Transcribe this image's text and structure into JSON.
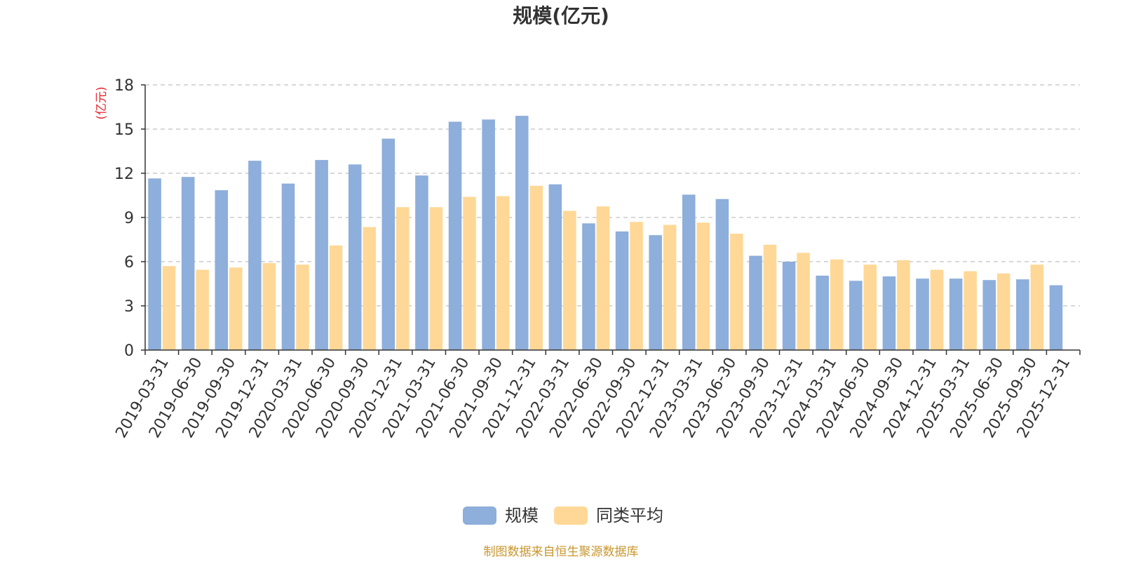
{
  "chart_data": {
    "type": "bar",
    "title": "规模(亿元)",
    "ylabel": "(亿元)",
    "xlabel": "",
    "ylim": [
      0,
      18
    ],
    "yticks": [
      0,
      3,
      6,
      9,
      12,
      15,
      18
    ],
    "grid": true,
    "legend_position": "bottom-center",
    "categories": [
      "2019-03-31",
      "2019-06-30",
      "2019-09-30",
      "2019-12-31",
      "2020-03-31",
      "2020-06-30",
      "2020-09-30",
      "2020-12-31",
      "2021-03-31",
      "2021-06-30",
      "2021-09-30",
      "2021-12-31",
      "2022-03-31",
      "2022-06-30",
      "2022-09-30",
      "2022-12-31",
      "2023-03-31",
      "2023-06-30",
      "2023-09-30",
      "2023-12-31",
      "2024-03-31",
      "2024-06-30",
      "2024-09-30",
      "2024-12-31",
      "2025-03-31",
      "2025-06-30",
      "2025-09-30",
      "2025-12-31"
    ],
    "series": [
      {
        "name": "规模",
        "color": "#8eaedb",
        "values": [
          11.65,
          11.75,
          10.85,
          12.85,
          11.3,
          12.9,
          12.6,
          14.35,
          11.85,
          15.5,
          15.65,
          15.9,
          11.25,
          8.6,
          8.05,
          7.8,
          10.55,
          10.25,
          6.4,
          6.0,
          5.05,
          4.7,
          5.0,
          4.85,
          4.85,
          4.75,
          4.8,
          4.4
        ]
      },
      {
        "name": "同类平均",
        "color": "#ffd897",
        "values": [
          5.7,
          5.45,
          5.6,
          5.9,
          5.8,
          7.1,
          8.35,
          9.7,
          9.7,
          10.4,
          10.45,
          11.15,
          9.45,
          9.75,
          8.7,
          8.5,
          8.65,
          7.9,
          7.15,
          6.6,
          6.15,
          5.8,
          6.1,
          5.45,
          5.35,
          5.2,
          5.8,
          null
        ]
      }
    ]
  },
  "footer": {
    "source": "制图数据来自恒生聚源数据库"
  },
  "colors": {
    "title": "#333333",
    "axis": "#333333",
    "grid": "#cccccc",
    "ylabel": "#e8232b",
    "source": "#c8962e"
  }
}
